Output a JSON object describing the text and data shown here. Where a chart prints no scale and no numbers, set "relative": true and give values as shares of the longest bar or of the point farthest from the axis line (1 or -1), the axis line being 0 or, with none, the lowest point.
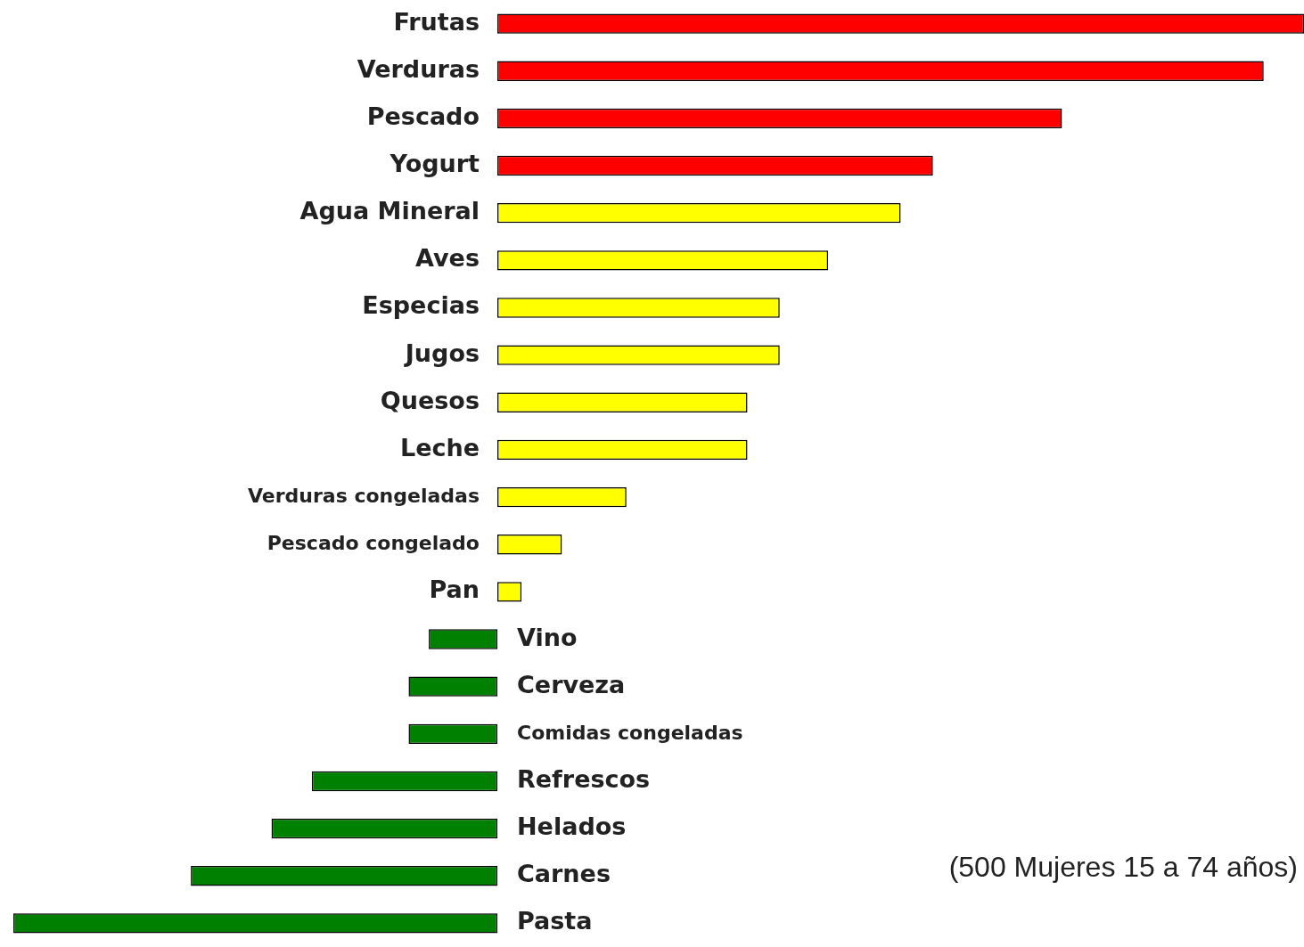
{
  "chart_data": {
    "type": "bar",
    "orientation": "horizontal",
    "relative": true,
    "categories": [
      "Frutas",
      "Verduras",
      "Pescado",
      "Yogurt",
      "Agua Mineral",
      "Aves",
      "Especias",
      "Jugos",
      "Quesos",
      "Leche",
      "Verduras congeladas",
      "Pescado congelado",
      "Pan",
      "Vino",
      "Cerveza",
      "Comidas congeladas",
      "Refrescos",
      "Helados",
      "Carnes",
      "Pasta"
    ],
    "values": [
      1,
      0.95,
      0.7,
      0.54,
      0.5,
      0.41,
      0.35,
      0.35,
      0.31,
      0.31,
      0.16,
      0.08,
      0.03,
      -0.085,
      -0.11,
      -0.11,
      -0.23,
      -0.28,
      -0.38,
      -0.6
    ],
    "colors": [
      "#ff0000",
      "#ff0000",
      "#ff0000",
      "#ff0000",
      "#ffff00",
      "#ffff00",
      "#ffff00",
      "#ffff00",
      "#ffff00",
      "#ffff00",
      "#ffff00",
      "#ffff00",
      "#ffff00",
      "#008000",
      "#008000",
      "#008000",
      "#008000",
      "#008000",
      "#008000",
      "#008000"
    ],
    "annotations": [
      "(500 Mujeres 15 a 74 años)"
    ]
  }
}
